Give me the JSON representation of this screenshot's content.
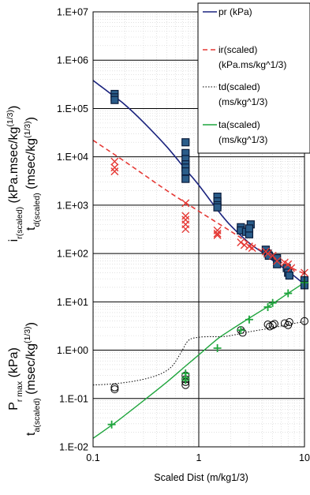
{
  "chart_data": {
    "type": "scatter",
    "x_scale": "log",
    "y_scale": "log",
    "xlim": [
      0.1,
      10
    ],
    "ylim": [
      0.01,
      10000000
    ],
    "grid": true,
    "legend_position": "top-right",
    "xlabel": "Scaled Dist (m/kg1/3)",
    "x_ticks": [
      "0.1",
      "1",
      "10"
    ],
    "y_ticks": [
      "1.E-02",
      "1.E-01",
      "1.E+00",
      "1.E+01",
      "1.E+02",
      "1.E+03",
      "1.E+04",
      "1.E+05",
      "1.E+06",
      "1.E+07"
    ],
    "ylabel_lines": [
      [
        "i",
        "r(scaled)",
        " (kPa.msec/kg",
        "(1/3)",
        ")"
      ],
      [
        "t",
        "d(scaled)",
        " (msec/kg",
        "(1/3)",
        ")"
      ],
      [
        "P",
        "r max",
        " (kPa)"
      ],
      [
        "t",
        "a(scaled)",
        " (msec/kg",
        "(1/3)",
        ")"
      ]
    ],
    "legend": [
      {
        "label": "pr (kPa)"
      },
      {
        "label": "ir(scaled)",
        "label2": "(kPa.ms/kg^1/3)"
      },
      {
        "label": "td(scaled)",
        "label2": "(ms/kg^1/3)"
      },
      {
        "label": "ta(scaled)",
        "label2": "(ms/kg^1/3)"
      }
    ],
    "colors": {
      "pr": "#1a237e",
      "pr_marker": "#2b5d8a",
      "pr_marker_edge": "#0a1b3a",
      "ir": "#e53935",
      "td": "#000000",
      "ta": "#1fa53d",
      "grid": "#d0d0d0"
    },
    "curves": {
      "pr": {
        "x": [
          0.1,
          0.15,
          0.2,
          0.3,
          0.5,
          0.75,
          1,
          1.5,
          2,
          3,
          4,
          5,
          7,
          10
        ],
        "y": [
          380000,
          195000,
          120000,
          52000,
          16000,
          5500,
          2600,
          800,
          380,
          165,
          105,
          72,
          43,
          23
        ]
      },
      "ir": {
        "x": [
          0.1,
          0.2,
          0.5,
          1,
          2,
          4,
          7,
          10
        ],
        "y": [
          22000,
          8000,
          2000,
          750,
          290,
          110,
          55,
          38
        ]
      },
      "td": {
        "x": [
          0.1,
          0.15,
          0.25,
          0.4,
          0.55,
          0.68,
          0.8,
          1,
          1.3,
          1.6,
          2,
          3,
          5,
          7,
          10
        ],
        "y": [
          0.19,
          0.2,
          0.23,
          0.3,
          0.45,
          0.9,
          1.6,
          1.85,
          1.9,
          1.9,
          2.0,
          2.4,
          2.9,
          3.4,
          3.9
        ]
      },
      "ta": {
        "x": [
          0.1,
          0.15,
          0.2,
          0.3,
          0.5,
          0.75,
          1,
          1.5,
          2,
          3,
          5,
          7,
          10
        ],
        "y": [
          0.015,
          0.028,
          0.045,
          0.09,
          0.22,
          0.47,
          0.8,
          1.7,
          2.6,
          4.6,
          9.2,
          15,
          25
        ]
      }
    },
    "points": {
      "pr": {
        "x": [
          0.16,
          0.16,
          0.16,
          0.75,
          0.75,
          0.75,
          0.75,
          0.75,
          0.75,
          0.75,
          1.5,
          1.5,
          1.5,
          1.5,
          2.5,
          2.5,
          2.8,
          3,
          3.1,
          3,
          4.3,
          4.5,
          4.6,
          5.5,
          5.5,
          6.8,
          7,
          7.2,
          10,
          10
        ],
        "y": [
          200000,
          170000,
          150000,
          20000,
          12000,
          9000,
          7000,
          6000,
          5000,
          3500,
          1500,
          1200,
          1000,
          900,
          350,
          300,
          280,
          250,
          400,
          330,
          120,
          100,
          90,
          80,
          60,
          50,
          40,
          35,
          28,
          22
        ]
      },
      "ir": {
        "x": [
          0.16,
          0.16,
          0.16,
          0.75,
          0.75,
          0.75,
          0.75,
          0.75,
          1.5,
          1.5,
          1.5,
          2.5,
          2.7,
          3,
          3.2,
          4.3,
          4.5,
          5,
          5.5,
          6.5,
          7,
          7.5,
          10
        ],
        "y": [
          8000,
          6000,
          5000,
          1100,
          600,
          500,
          400,
          320,
          300,
          260,
          240,
          170,
          150,
          140,
          130,
          110,
          100,
          90,
          70,
          65,
          60,
          50,
          40
        ]
      },
      "td": {
        "x": [
          0.16,
          0.16,
          0.75,
          0.75,
          0.75,
          0.75,
          2.5,
          2.6,
          4.5,
          4.7,
          5,
          5.2,
          6.5,
          7,
          7.2,
          10
        ],
        "y": [
          0.17,
          0.155,
          0.3,
          0.25,
          0.22,
          0.19,
          2.6,
          2.3,
          3.4,
          3.1,
          3.3,
          3.5,
          3.6,
          3.3,
          3.8,
          4.0
        ]
      },
      "ta": {
        "x": [
          0.15,
          0.75,
          0.75,
          0.75,
          1.5,
          2.5,
          3,
          4.5,
          5,
          7,
          10
        ],
        "y": [
          0.029,
          0.33,
          0.27,
          0.24,
          1.1,
          2.6,
          4.3,
          7.8,
          9.5,
          15,
          25
        ]
      }
    }
  }
}
